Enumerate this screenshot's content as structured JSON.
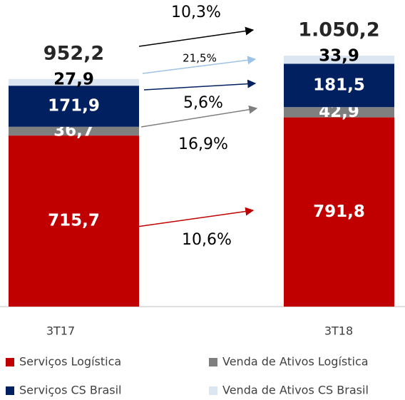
{
  "chart_data": {
    "type": "stacked_bar",
    "categories": [
      "3T17",
      "3T18"
    ],
    "series": [
      {
        "name": "Serviços Logística",
        "color": "#c00000",
        "values": [
          715.7,
          791.8
        ],
        "value_labels": [
          "715,7",
          "791,8"
        ],
        "growth": "10,6%"
      },
      {
        "name": "Venda de Ativos Logística",
        "color": "#7f7f7f",
        "values": [
          36.7,
          42.9
        ],
        "value_labels": [
          "36,7",
          "42,9"
        ],
        "growth": "16,9%"
      },
      {
        "name": "Serviços CS Brasil",
        "color": "#002060",
        "values": [
          171.9,
          181.5
        ],
        "value_labels": [
          "171,9",
          "181,5"
        ],
        "growth": "5,6%"
      },
      {
        "name": "Venda de Ativos CS Brasil",
        "color": "#dce6f2",
        "values": [
          27.9,
          33.9
        ],
        "value_labels": [
          "27,9",
          "33,9"
        ],
        "growth": "21,5%"
      }
    ],
    "totals": [
      952.2,
      1050.2
    ],
    "total_labels": [
      "952,2",
      "1.050,2"
    ],
    "total_growth": "10,3%"
  }
}
